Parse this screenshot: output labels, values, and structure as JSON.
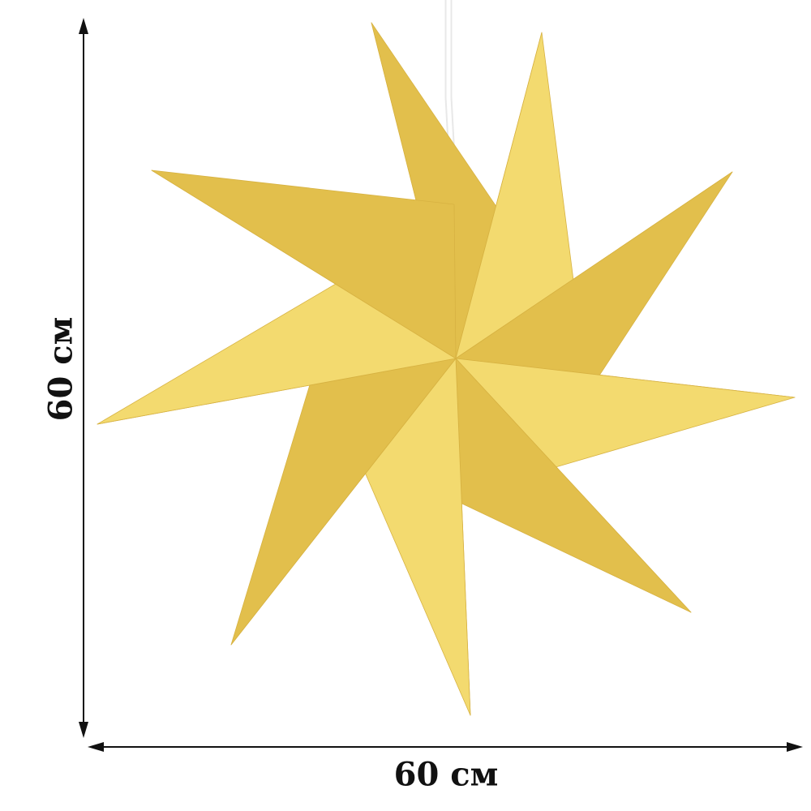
{
  "dimensions": {
    "height_label": "60 см",
    "width_label": "60 см"
  },
  "product": {
    "description_icon": "nine-point-paper-star",
    "points": 9,
    "colors": {
      "light": "#f3da6f",
      "dark": "#e2bf4c",
      "edge": "#d7b242",
      "cord": "#f4f4f4",
      "arrow": "#111111"
    }
  }
}
